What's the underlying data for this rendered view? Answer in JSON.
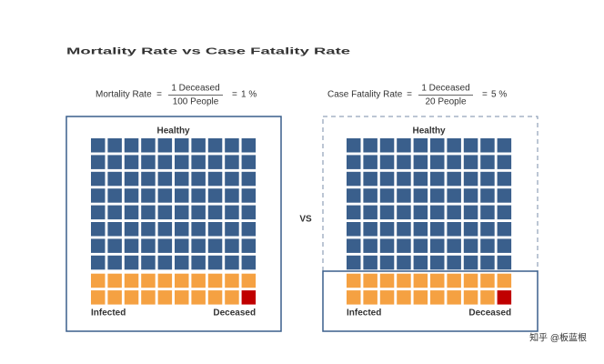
{
  "title": "Mortality Rate vs Case Fatality Rate",
  "panels": [
    {
      "label": "Mortality Rate",
      "equals": "=",
      "numerator": "1 Deceased",
      "denominator": "100 People",
      "result": "1 %",
      "healthy": "Healthy",
      "infected": "Infected",
      "deceased": "Deceased"
    },
    {
      "label": "Case Fatality Rate",
      "equals": "=",
      "numerator": "1 Deceased",
      "denominator": "20 People",
      "result": "5 %",
      "healthy": "Healthy",
      "infected": "Infected",
      "deceased": "Deceased"
    }
  ],
  "vs": "VS",
  "watermark": "知乎 @板蓝根"
}
